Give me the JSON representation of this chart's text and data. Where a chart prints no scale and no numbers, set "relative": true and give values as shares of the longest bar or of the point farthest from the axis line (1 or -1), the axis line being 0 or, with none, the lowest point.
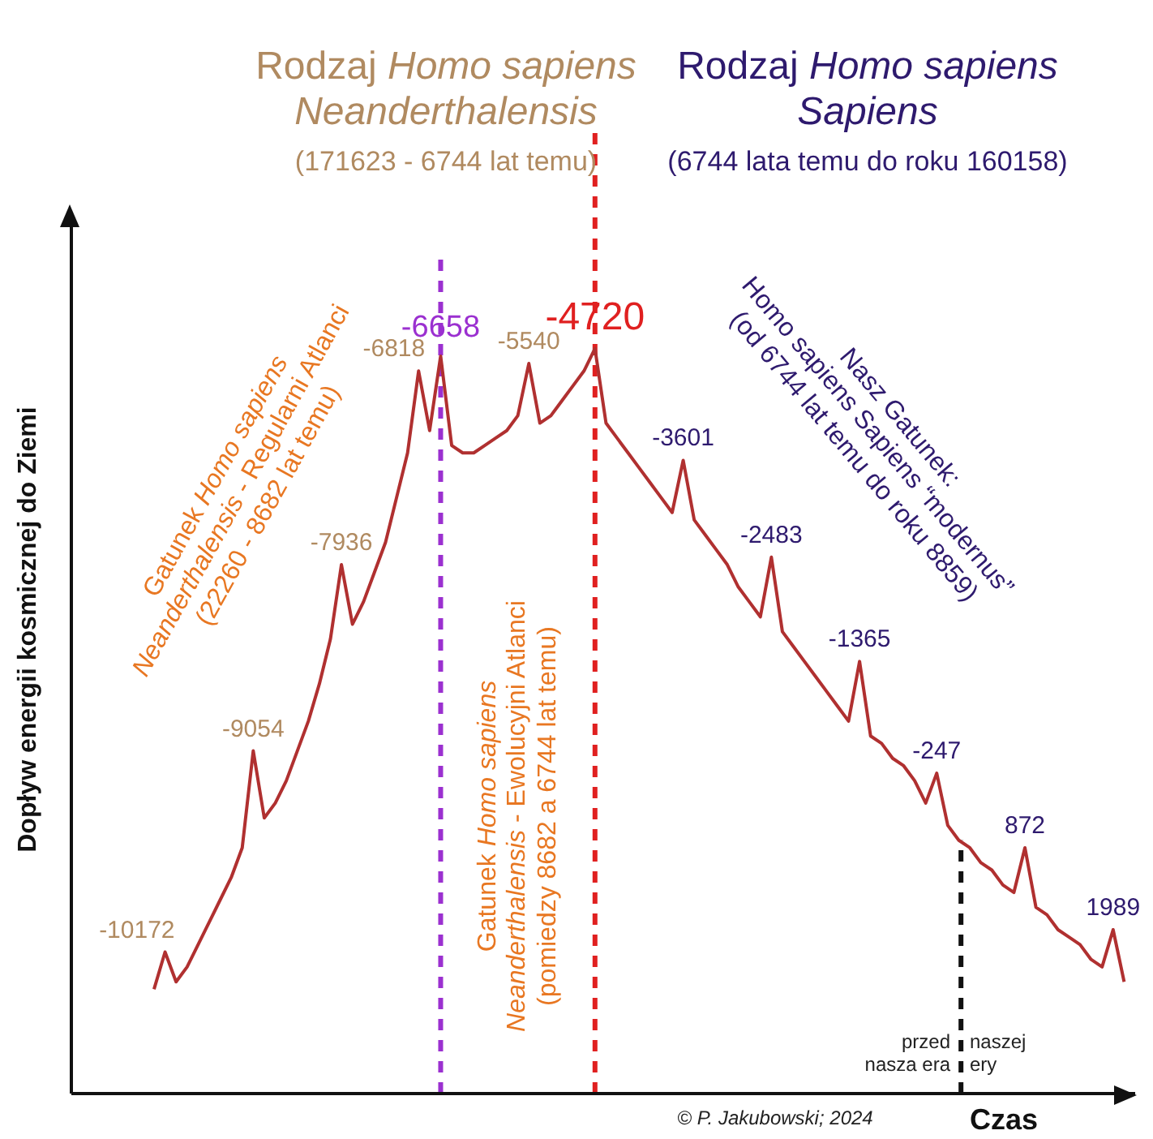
{
  "chart_data": {
    "type": "line",
    "relative": true,
    "xlabel": "Czas",
    "ylabel": "Dopływ energii kosmicznej do Ziemi",
    "categories": [
      null,
      null,
      null,
      null,
      null,
      null,
      null,
      null,
      null,
      null,
      null,
      null,
      null,
      null,
      null,
      null,
      null,
      null,
      null,
      null,
      null,
      null,
      null,
      null,
      null,
      null,
      null,
      null,
      null,
      null,
      null,
      null,
      null,
      null,
      null,
      null,
      null,
      null,
      null,
      null,
      null,
      null,
      null,
      null,
      null,
      null,
      null,
      null,
      null,
      null,
      null,
      null,
      null,
      null,
      null,
      null,
      null,
      null,
      null,
      null,
      null,
      null,
      null,
      null,
      null,
      null,
      null,
      null,
      null,
      null,
      null,
      null,
      null,
      null,
      null,
      null,
      null,
      null,
      null,
      null,
      null,
      null,
      null,
      null,
      null,
      null,
      null,
      null,
      null
    ],
    "series": [
      {
        "color": "#b03030",
        "values": [
          0.14,
          0.19,
          0.15,
          0.17,
          0.2,
          0.23,
          0.26,
          0.29,
          0.33,
          0.46,
          0.37,
          0.39,
          0.42,
          0.46,
          0.5,
          0.55,
          0.61,
          0.71,
          0.63,
          0.66,
          0.7,
          0.74,
          0.8,
          0.86,
          0.97,
          0.89,
          0.99,
          0.87,
          0.86,
          0.86,
          0.87,
          0.88,
          0.89,
          0.91,
          0.98,
          0.9,
          0.91,
          0.93,
          0.95,
          0.97,
          1.0,
          0.9,
          0.88,
          0.86,
          0.84,
          0.82,
          0.8,
          0.78,
          0.85,
          0.77,
          0.75,
          0.73,
          0.71,
          0.68,
          0.66,
          0.64,
          0.72,
          0.62,
          0.6,
          0.58,
          0.56,
          0.54,
          0.52,
          0.5,
          0.58,
          0.48,
          0.47,
          0.45,
          0.44,
          0.42,
          0.39,
          0.43,
          0.36,
          0.34,
          0.33,
          0.31,
          0.3,
          0.28,
          0.27,
          0.33,
          0.25,
          0.24,
          0.22,
          0.21,
          0.2,
          0.18,
          0.17,
          0.22,
          0.15
        ]
      }
    ],
    "tick_labels": false,
    "grid": false,
    "legend": false,
    "marker": "none",
    "line_style": "solid",
    "annotations": [
      "Rodzaj Homo sapiens\nNeanderthalensis",
      "(171623 - 6744 lat temu)",
      "Rodzaj Homo sapiens\nSapiens",
      "(6744 lata temu do roku 160158)",
      "Gatunek Homo sapiens\nNeanderthalensis - Regularni Atlanci\n(22260 - 8682 lat temu)",
      "Gatunek Homo sapiens\nNeanderthalensis  -  Ewolucyjni Atlanci\n(pomiedzy 8682 a 6744 lat  temu)",
      "Nasz Gatunek:\nHomo sapiens Sapiens “modernus”\n(od 6744 lat temu do roku 8859)",
      "przed\nnasza era",
      "naszej\nery",
      "© P. Jakubowski; 2024",
      "-10172",
      "-9054",
      "-7936",
      "-6818",
      "-6658",
      "-5540",
      "-4720",
      "-3601",
      "-2483",
      "-1365",
      "-247",
      "872",
      "1989"
    ]
  }
}
